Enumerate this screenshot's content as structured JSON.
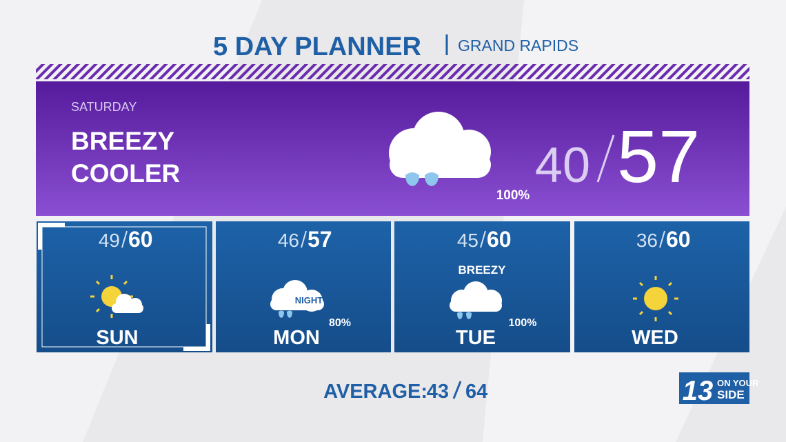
{
  "header": {
    "title": "5 DAY PLANNER",
    "location": "GRAND RAPIDS"
  },
  "today": {
    "day": "SATURDAY",
    "description": [
      "BREEZY",
      "COOLER"
    ],
    "low": 40,
    "high": 57,
    "precip": "100%"
  },
  "days": [
    {
      "name": "SUN",
      "low": 49,
      "high": 60
    },
    {
      "name": "MON",
      "low": 46,
      "high": 57,
      "precip": "80%",
      "icon_label": "NIGHT"
    },
    {
      "name": "TUE",
      "low": 45,
      "high": 60,
      "precip": "100%",
      "note": "BREEZY"
    },
    {
      "name": "WED",
      "low": 36,
      "high": 60
    }
  ],
  "average": {
    "label": "AVERAGE:",
    "low": 43,
    "high": 64
  },
  "logo": {
    "number": "13",
    "line1": "ON YOUR",
    "line2": "SIDE"
  }
}
